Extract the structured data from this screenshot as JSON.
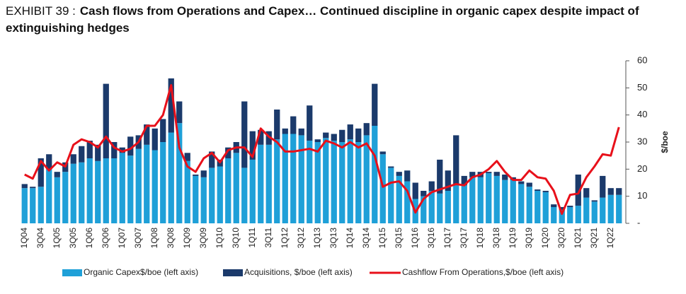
{
  "chart_data": {
    "type": "bar",
    "exhibit": "EXHIBIT 39 :",
    "title": "Cash flows from Operations and Capex… Continued discipline in organic capex despite impact of extinguishing hedges",
    "y_label": "$/boe",
    "categories": [
      "1Q04",
      null,
      "3Q04",
      null,
      "1Q05",
      null,
      "3Q05",
      null,
      "1Q06",
      null,
      "3Q06",
      null,
      "1Q07",
      null,
      "3Q07",
      null,
      "1Q08",
      null,
      "3Q08",
      null,
      "1Q09",
      null,
      "3Q09",
      null,
      "1Q10",
      null,
      "3Q10",
      null,
      "1Q11",
      null,
      "3Q11",
      null,
      "1Q12",
      null,
      "3Q12",
      null,
      "1Q13",
      null,
      "3Q13",
      null,
      "1Q14",
      null,
      "3Q14",
      null,
      "1Q15",
      null,
      "3Q15",
      null,
      "1Q16",
      null,
      "3Q16",
      null,
      "1Q17",
      null,
      "3Q17",
      null,
      "1Q18",
      null,
      "3Q18",
      null,
      "1Q19",
      null,
      "3Q19",
      null,
      "1Q20",
      null,
      "3Q20",
      null,
      "1Q21",
      null,
      "3Q21",
      null,
      "1Q22",
      null
    ],
    "series": [
      {
        "name": "Organic Capex$/boe (left axis)",
        "type": "bar",
        "color": "#1fa0d8",
        "values": [
          13,
          13,
          13.5,
          20,
          17,
          19,
          22,
          22.5,
          24,
          23,
          24,
          24,
          26,
          25,
          27.5,
          29,
          27,
          30,
          33.5,
          37,
          23,
          17.5,
          17,
          20.5,
          21,
          24,
          26,
          20.5,
          23.5,
          29,
          29,
          31,
          33,
          33,
          32.5,
          30.5,
          30,
          31.5,
          30.5,
          30,
          31,
          30,
          32.5,
          36,
          25.5,
          20.5,
          17.5,
          15.5,
          9,
          10,
          12,
          11,
          12,
          14,
          14,
          17,
          17,
          18.5,
          17.5,
          16,
          16,
          14.5,
          13.5,
          12,
          11.5,
          6,
          5,
          6,
          6.5,
          9.5,
          8,
          9.5,
          10.5,
          10.5
        ]
      },
      {
        "name": "Acquisitions, $/boe (left axis)",
        "type": "bar",
        "color": "#1b3a6b",
        "values": [
          1.5,
          0.5,
          10.5,
          5.5,
          2,
          3.5,
          3.5,
          6,
          6.5,
          6,
          27.5,
          6,
          2,
          7,
          5,
          7.5,
          8,
          8.5,
          20,
          8,
          3,
          0.5,
          2.5,
          6,
          2.5,
          4,
          4,
          24.5,
          10.5,
          5.5,
          5,
          11,
          2,
          6.5,
          2.5,
          13,
          1,
          2,
          2.5,
          4.5,
          5.5,
          5,
          4.5,
          15.5,
          1,
          0.5,
          1.5,
          4,
          6,
          2,
          3.5,
          12.5,
          7.5,
          18.5,
          3.5,
          2,
          2,
          0.5,
          1.5,
          2,
          1,
          1,
          1.5,
          0.5,
          0.5,
          1,
          1,
          0.5,
          11.5,
          3.5,
          0.5,
          8,
          2.5,
          2.5
        ]
      },
      {
        "name": "Cashflow From Operations,$/boe (left axis)",
        "type": "line",
        "color": "#e8101a",
        "values": [
          18,
          16.5,
          23,
          19.5,
          22.5,
          21,
          29,
          31,
          30,
          28,
          32,
          28,
          26.5,
          27.5,
          30,
          36,
          36,
          40,
          51,
          28,
          21,
          19,
          24,
          26,
          22.5,
          27,
          28,
          28,
          24.5,
          35,
          32,
          30,
          26.5,
          26.5,
          27,
          27.5,
          26.5,
          30.5,
          29.5,
          28,
          30,
          28,
          29.5,
          25,
          13.5,
          15,
          15.5,
          12,
          4,
          9,
          11.5,
          12.5,
          13.5,
          14.5,
          14,
          17,
          18,
          20,
          23,
          19,
          16,
          16,
          19.5,
          17,
          16.5,
          12,
          3.5,
          10.5,
          11,
          17,
          21,
          25.5,
          25,
          35.5
        ]
      }
    ],
    "ylim": [
      0,
      60
    ],
    "yticks": [
      {
        "value": 0,
        "label": "-"
      },
      10,
      20,
      30,
      40,
      50,
      60
    ]
  }
}
